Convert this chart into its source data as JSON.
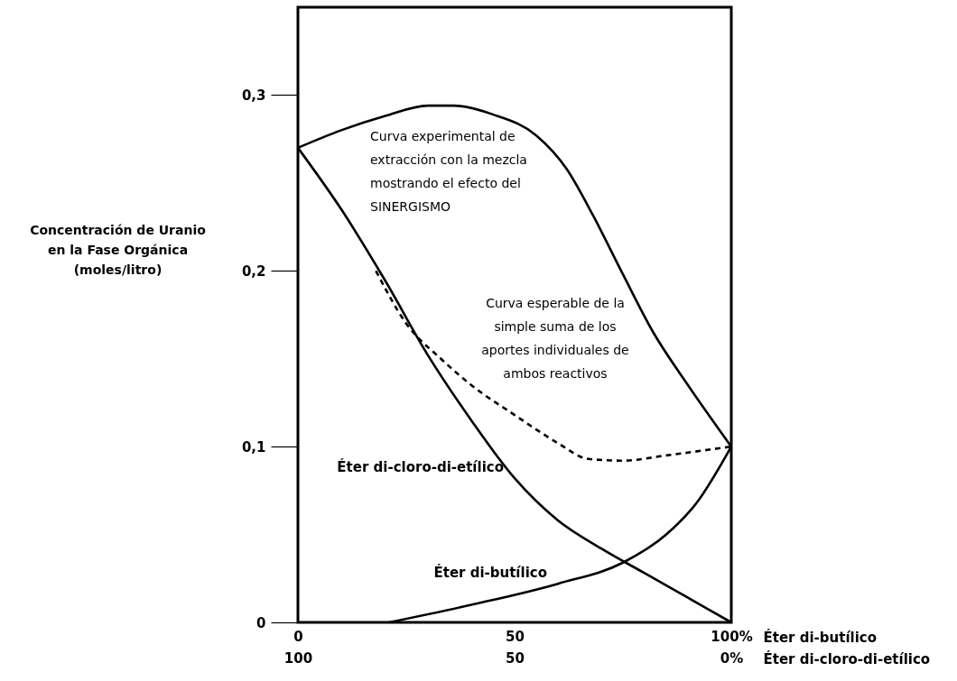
{
  "chart_data": {
    "type": "line",
    "ylabel": "Concentración de Uranio\nen la Fase Orgánica\n\n(moles/litro)",
    "xlabel": "Éter di-butílico",
    "x2label": "Éter di-cloro-di-etílico",
    "xlim": [
      0,
      100
    ],
    "xticks": [
      0,
      50,
      {
        "value": 100,
        "label": "100%"
      }
    ],
    "x2lim": [
      100,
      0
    ],
    "x2ticks": [
      100,
      50,
      {
        "value": 0,
        "label": "0%"
      }
    ],
    "ylim": [
      0,
      0.35
    ],
    "yticks": [
      {
        "value": 0,
        "label": "0"
      },
      {
        "value": 0.1,
        "label": "0,1"
      },
      {
        "value": 0.2,
        "label": "0,2"
      },
      {
        "value": 0.3,
        "label": "0,3"
      }
    ],
    "grid": false,
    "marker": "none",
    "series": [
      {
        "color": "#000000",
        "line_style": "solid",
        "x": [
          0,
          10,
          20,
          30,
          36,
          45,
          55,
          62,
          68,
          75,
          82,
          90,
          100
        ],
        "values": [
          0.27,
          0.28,
          0.288,
          0.294,
          0.294,
          0.289,
          0.277,
          0.258,
          0.232,
          0.198,
          0.165,
          0.135,
          0.1
        ]
      },
      {
        "name": "Éter di-cloro-di-etílico",
        "color": "#000000",
        "line_style": "solid",
        "x": [
          0,
          10,
          20,
          30,
          40,
          50,
          60,
          70,
          80,
          90,
          100
        ],
        "values": [
          0.27,
          0.235,
          0.195,
          0.152,
          0.115,
          0.082,
          0.058,
          0.042,
          0.028,
          0.014,
          0.0
        ]
      },
      {
        "name": "Éter di-butílico",
        "color": "#000000",
        "line_style": "solid",
        "x": [
          21,
          40,
          60,
          75,
          85,
          92,
          100
        ],
        "values": [
          0.0,
          0.01,
          0.022,
          0.034,
          0.05,
          0.068,
          0.1
        ]
      },
      {
        "color": "#000000",
        "line_style": "dashed",
        "x": [
          18,
          25,
          33,
          40,
          50,
          60,
          67,
          75,
          85,
          100
        ],
        "values": [
          0.2,
          0.17,
          0.15,
          0.135,
          0.118,
          0.102,
          0.093,
          0.092,
          0.095,
          0.1
        ]
      }
    ],
    "annotations": [
      {
        "text": "Curva experimental de\nextracción con la mezcla\nmostrando el efecto del\nSINERGISMO",
        "x": 40,
        "y": 0.294
      },
      "Curva esperable de la\nsimple suma de los\naportes individuales de\nambos reactivos"
    ]
  }
}
